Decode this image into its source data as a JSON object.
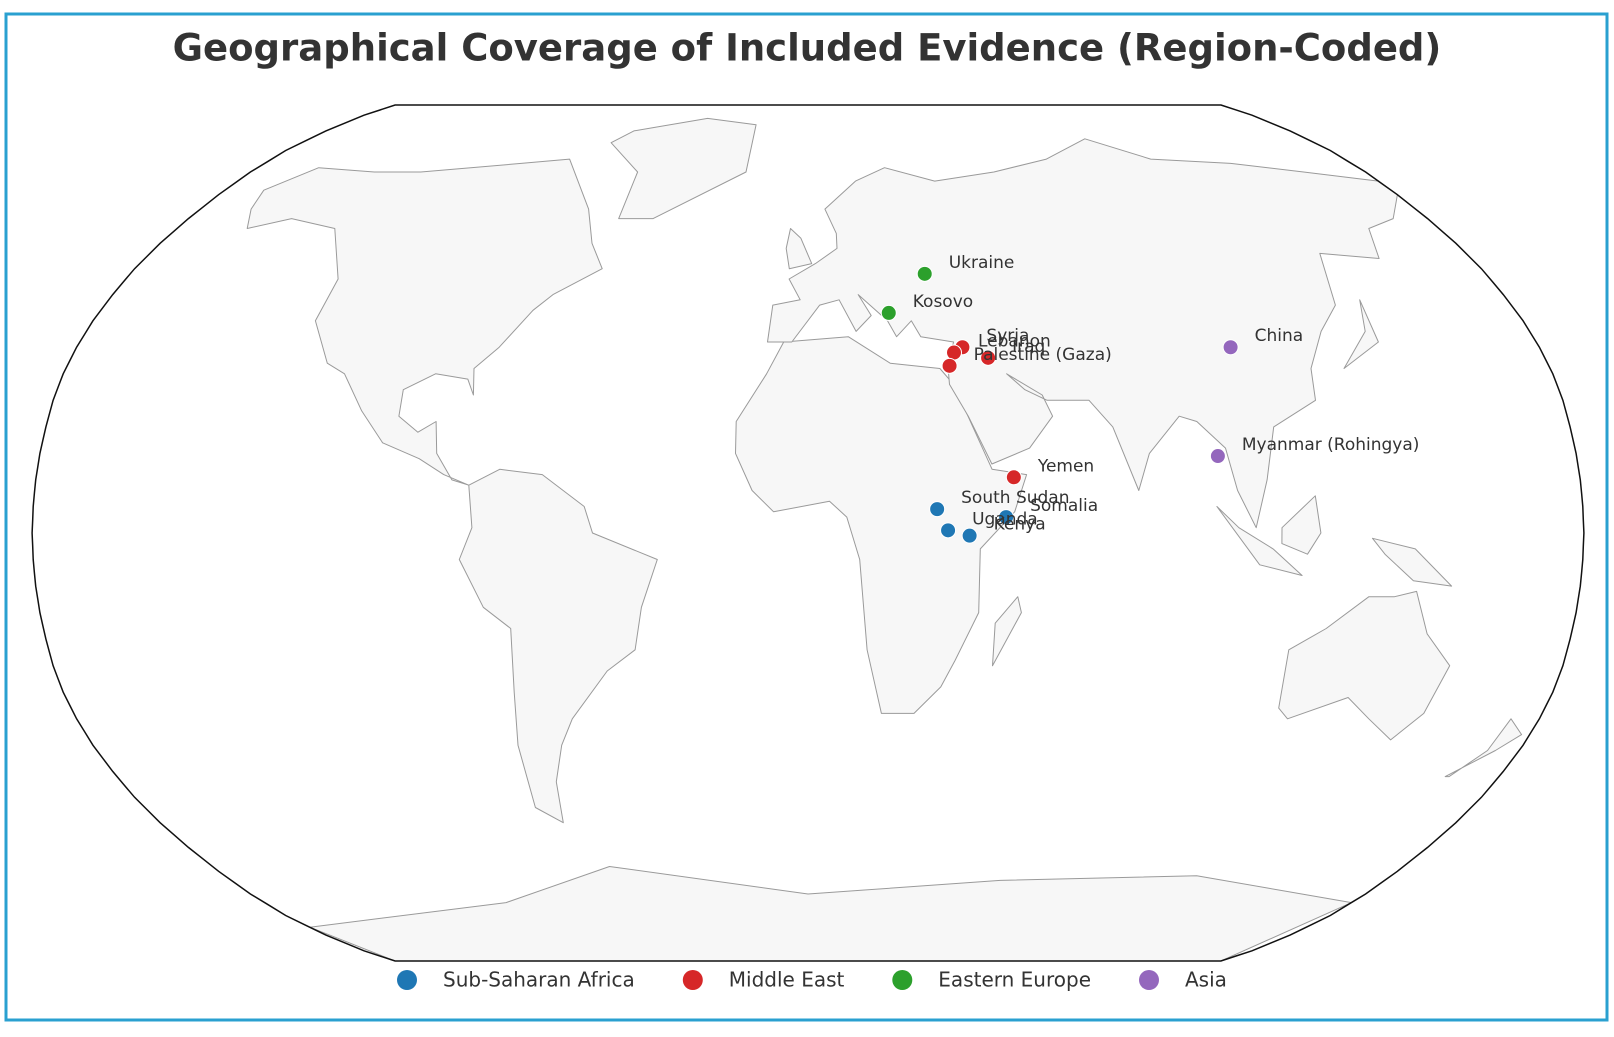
{
  "chart_data": {
    "type": "map",
    "projection": "robinson",
    "title": "Geographical Coverage of Included Evidence (Region-Coded)",
    "series": [
      {
        "name": "Sub-Saharan Africa",
        "color": "#1f77b4",
        "points": [
          {
            "label": "South Sudan",
            "lon": 30,
            "lat": 4.5
          },
          {
            "label": "Somalia",
            "lon": 46,
            "lat": 3
          },
          {
            "label": "Uganda",
            "lon": 32.5,
            "lat": 0.5
          },
          {
            "label": "Kenya",
            "lon": 37.5,
            "lat": -0.5
          }
        ]
      },
      {
        "name": "Middle East",
        "color": "#d62728",
        "points": [
          {
            "label": "Syria",
            "lon": 38,
            "lat": 35
          },
          {
            "label": "Lebanon",
            "lon": 35.8,
            "lat": 34
          },
          {
            "label": "Iraq",
            "lon": 44,
            "lat": 33
          },
          {
            "label": "Palestine (Gaza)",
            "lon": 34.4,
            "lat": 31.5
          },
          {
            "label": "Yemen",
            "lon": 48,
            "lat": 10.5
          }
        ]
      },
      {
        "name": "Eastern Europe",
        "color": "#2ca02c",
        "points": [
          {
            "label": "Ukraine",
            "lon": 31,
            "lat": 49
          },
          {
            "label": "Kosovo",
            "lon": 20.5,
            "lat": 41.5
          }
        ]
      },
      {
        "name": "Asia",
        "color": "#9467bd",
        "points": [
          {
            "label": "China",
            "lon": 104,
            "lat": 35
          },
          {
            "label": "Myanmar (Rohingya)",
            "lon": 96,
            "lat": 14.5
          }
        ]
      }
    ]
  }
}
